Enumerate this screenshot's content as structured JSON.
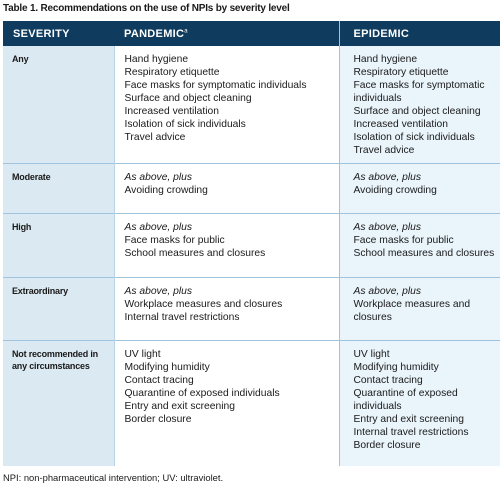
{
  "caption": "Table 1. Recommendations on the use of NPIs by severity level",
  "headers": {
    "severity": "SEVERITY",
    "pandemic": "PANDEMIC",
    "pandemic_mark": "a",
    "epidemic": "EPIDEMIC"
  },
  "rows": [
    {
      "severity": "Any",
      "pandemic": [
        "Hand hygiene",
        "Respiratory etiquette",
        "Face masks for symptomatic individuals",
        "Surface and object cleaning",
        "Increased ventilation",
        "Isolation of sick individuals",
        "Travel advice"
      ],
      "epidemic": [
        "Hand hygiene",
        "Respiratory etiquette",
        "Face masks for symptomatic individuals",
        "Surface and object cleaning",
        "Increased ventilation",
        "Isolation of sick individuals",
        "Travel advice"
      ]
    },
    {
      "severity": "Moderate",
      "intro": "As above, plus",
      "pandemic": [
        "Avoiding crowding"
      ],
      "epidemic": [
        "Avoiding crowding"
      ]
    },
    {
      "severity": "High",
      "intro": "As above, plus",
      "pandemic": [
        "Face masks for public",
        "School measures and closures"
      ],
      "epidemic": [
        "Face masks for public",
        "School measures and closures"
      ]
    },
    {
      "severity": "Extraordinary",
      "intro": "As above, plus",
      "pandemic": [
        "Workplace measures and closures",
        "Internal travel restrictions"
      ],
      "epidemic": [
        "Workplace measures and closures"
      ]
    },
    {
      "severity": "Not recommended in any circumstances",
      "pandemic": [
        "UV light",
        "Modifying humidity",
        "Contact tracing",
        "Quarantine of exposed individuals",
        "Entry and exit screening",
        "Border closure"
      ],
      "epidemic": [
        "UV light",
        "Modifying humidity",
        "Contact tracing",
        "Quarantine of exposed individuals",
        "Entry and exit screening",
        "Internal travel restrictions",
        "Border closure"
      ]
    }
  ],
  "footnote": "NPI: non-pharmaceutical intervention; UV: ultraviolet.",
  "colors": {
    "header_bg": "#0f3c5e",
    "severity_bg": "#dbeaf2",
    "epidemic_bg": "#e9f4fb",
    "rule": "#9fc2dd"
  }
}
